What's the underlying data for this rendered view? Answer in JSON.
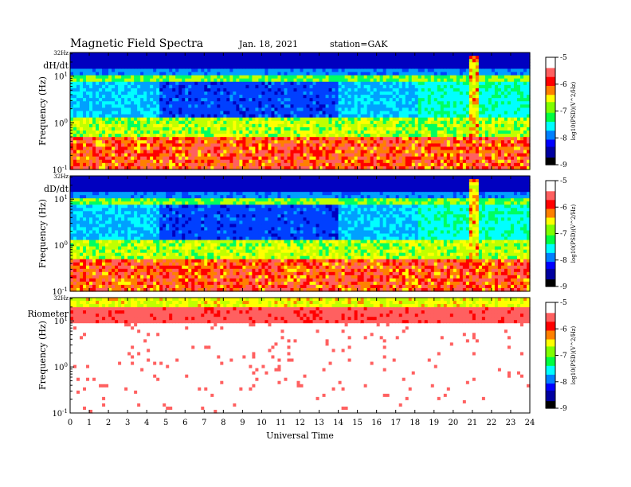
{
  "header": {
    "title": "Magnetic  Field  Spectra",
    "date": "Jan. 18, 2021",
    "station": "station=GAK"
  },
  "colors": {
    "colormap": [
      "#000040",
      "#0000a0",
      "#0000ff",
      "#0088ff",
      "#00ffff",
      "#00ff40",
      "#b0ff00",
      "#ffff00",
      "#ff8000",
      "#ff0000",
      "#ff7070",
      "#ffffff"
    ]
  },
  "chart_data": [
    {
      "type": "heatmap",
      "panel_label": "dH/dt",
      "ylabel": "Frequency  (Hz)",
      "top_label": "32Hz",
      "ytick_labels": [
        "10^1",
        "10^0",
        "10^-1"
      ],
      "ytick_values": [
        10,
        1,
        0.1
      ],
      "ylim": [
        0.1,
        32
      ],
      "yscale": "log",
      "x_range_hours": [
        0,
        24
      ],
      "colorbar": {
        "label": "log10(PSD)(V^2/Hz)",
        "tick_labels": [
          "-5",
          "-6",
          "-7",
          "-8",
          "-9"
        ],
        "tick_values": [
          -5,
          -6,
          -7,
          -8,
          -9
        ],
        "range": [
          -9,
          -5
        ]
      }
    },
    {
      "type": "heatmap",
      "panel_label": "dD/dt",
      "ylabel": "Frequency  (Hz)",
      "top_label": "32Hz",
      "ytick_labels": [
        "10^1",
        "10^0",
        "10^-1"
      ],
      "ytick_values": [
        10,
        1,
        0.1
      ],
      "ylim": [
        0.1,
        32
      ],
      "yscale": "log",
      "x_range_hours": [
        0,
        24
      ],
      "colorbar": {
        "label": "log10(PSD)(V^2/Hz)",
        "tick_labels": [
          "-5",
          "-6",
          "-7",
          "-8",
          "-9"
        ],
        "tick_values": [
          -5,
          -6,
          -7,
          -8,
          -9
        ],
        "range": [
          -9,
          -5
        ]
      }
    },
    {
      "type": "heatmap",
      "panel_label": "Riometer",
      "ylabel": "Frequency  (Hz)",
      "top_label": "32Hz",
      "ytick_labels": [
        "10^1",
        "10^0",
        "10^-1"
      ],
      "ytick_values": [
        10,
        1,
        0.1
      ],
      "ylim": [
        0.1,
        32
      ],
      "yscale": "log",
      "x_range_hours": [
        0,
        24
      ],
      "colorbar": {
        "label": "log10(PSD)(V^2/Hz)",
        "tick_labels": [
          "-5",
          "-6",
          "-7",
          "-8",
          "-9"
        ],
        "tick_values": [
          -5,
          -6,
          -7,
          -8,
          -9
        ],
        "range": [
          -9,
          -5
        ]
      }
    }
  ],
  "xaxis": {
    "label": "Universal Time",
    "tick_labels": [
      "0",
      "1",
      "2",
      "3",
      "4",
      "5",
      "6",
      "7",
      "8",
      "9",
      "10",
      "11",
      "12",
      "13",
      "14",
      "15",
      "16",
      "17",
      "18",
      "19",
      "20",
      "21",
      "22",
      "23",
      "24"
    ]
  }
}
